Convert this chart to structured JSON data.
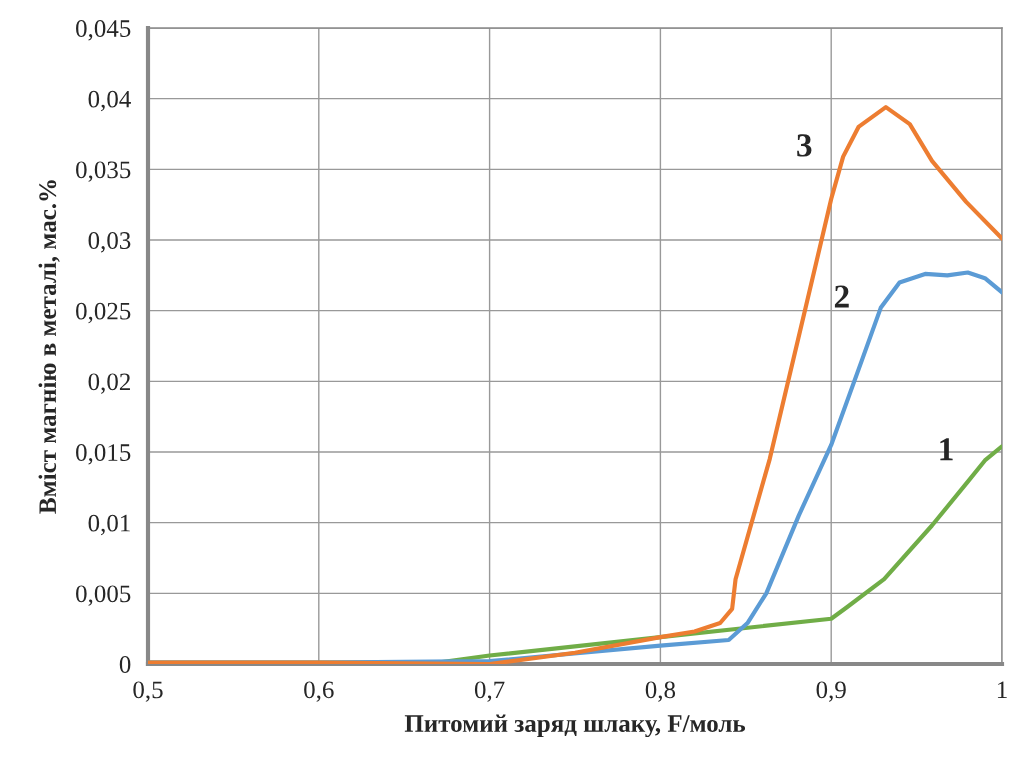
{
  "chart_data": {
    "type": "line",
    "xlabel": "Питомий заряд шлаку, F/моль",
    "ylabel": "Вміст магнію в металі, мас.%",
    "xlim": [
      0.5,
      1.0
    ],
    "ylim": [
      0,
      0.045
    ],
    "xticks": [
      {
        "value": 0.5,
        "label": "0,5"
      },
      {
        "value": 0.6,
        "label": "0,6"
      },
      {
        "value": 0.7,
        "label": "0,7"
      },
      {
        "value": 0.8,
        "label": "0,8"
      },
      {
        "value": 0.9,
        "label": "0,9"
      },
      {
        "value": 1.0,
        "label": "1"
      }
    ],
    "yticks": [
      {
        "value": 0,
        "label": "0"
      },
      {
        "value": 0.005,
        "label": "0,005"
      },
      {
        "value": 0.01,
        "label": "0,01"
      },
      {
        "value": 0.015,
        "label": "0,015"
      },
      {
        "value": 0.02,
        "label": "0,02"
      },
      {
        "value": 0.025,
        "label": "0,025"
      },
      {
        "value": 0.03,
        "label": "0,03"
      },
      {
        "value": 0.035,
        "label": "0,035"
      },
      {
        "value": 0.04,
        "label": "0,04"
      },
      {
        "value": 0.045,
        "label": "0,045"
      }
    ],
    "grid": true,
    "legend": false,
    "marker": "none",
    "line_style": "solid",
    "series": [
      {
        "name": "1",
        "color": "#70ad47",
        "x": [
          0.5,
          0.6,
          0.67,
          0.7,
          0.8,
          0.9,
          0.909,
          0.931,
          0.959,
          0.98,
          0.99,
          1.0
        ],
        "values": [
          0.0001,
          0.0001,
          0.0001,
          0.0006,
          0.0019,
          0.0032,
          0.004,
          0.006,
          0.0098,
          0.0129,
          0.0144,
          0.0154
        ]
      },
      {
        "name": "2",
        "color": "#5b9bd5",
        "x": [
          0.5,
          0.6,
          0.7,
          0.8,
          0.84,
          0.851,
          0.862,
          0.881,
          0.9,
          0.918,
          0.929,
          0.94,
          0.955,
          0.968,
          0.98,
          0.99,
          1.0
        ],
        "values": [
          0.0001,
          0.0001,
          0.0002,
          0.0013,
          0.0017,
          0.0029,
          0.005,
          0.0105,
          0.0155,
          0.0215,
          0.0252,
          0.027,
          0.0276,
          0.0275,
          0.0277,
          0.0273,
          0.0263
        ]
      },
      {
        "name": "3",
        "color": "#ed7d31",
        "x": [
          0.5,
          0.6,
          0.7,
          0.75,
          0.8,
          0.82,
          0.835,
          0.842,
          0.844,
          0.864,
          0.885,
          0.9,
          0.907,
          0.916,
          0.932,
          0.946,
          0.959,
          0.979,
          1.0
        ],
        "values": [
          0.0001,
          0.0001,
          0.0,
          0.0008,
          0.0019,
          0.0023,
          0.0029,
          0.0039,
          0.006,
          0.0145,
          0.0252,
          0.0329,
          0.0359,
          0.038,
          0.0394,
          0.0382,
          0.0356,
          0.0327,
          0.0301
        ]
      }
    ]
  }
}
